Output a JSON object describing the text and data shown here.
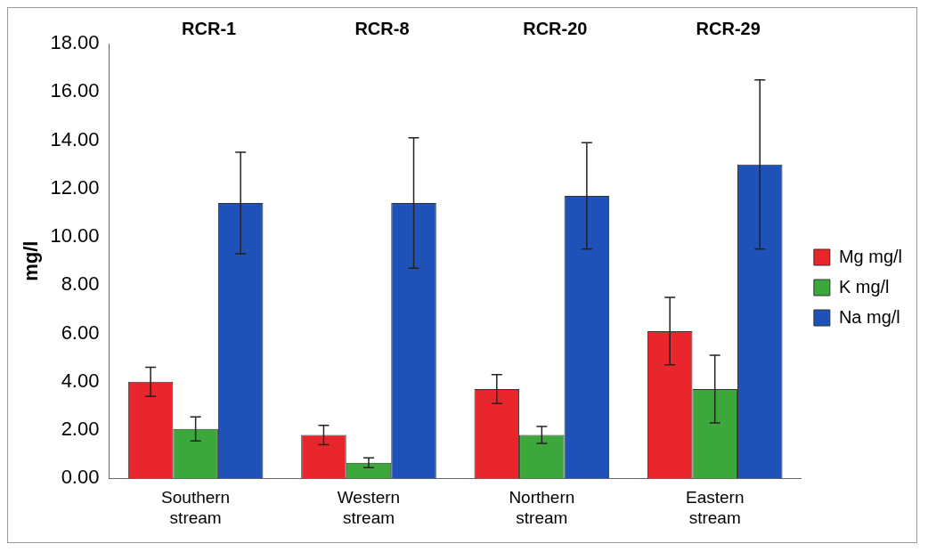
{
  "chart_data": {
    "type": "bar",
    "ylabel": "mg/l",
    "categories": [
      "Southern stream",
      "Western stream",
      "Northern stream",
      "Eastern stream"
    ],
    "series": [
      {
        "name": "Mg mg/l",
        "color": "#e8262c",
        "values": [
          4.0,
          1.8,
          3.7,
          6.1
        ],
        "errors": [
          0.6,
          0.4,
          0.6,
          1.4
        ]
      },
      {
        "name": "K mg/l",
        "color": "#3ca83c",
        "values": [
          2.05,
          0.65,
          1.8,
          3.7
        ],
        "errors": [
          0.5,
          0.2,
          0.35,
          1.4
        ]
      },
      {
        "name": "Na mg/l",
        "color": "#1f52b8",
        "values": [
          11.4,
          11.4,
          11.7,
          13.0
        ],
        "errors": [
          2.1,
          2.7,
          2.2,
          3.5
        ]
      }
    ],
    "ylim": [
      0,
      18
    ],
    "yticks": [
      {
        "value": 0,
        "label": "0.00"
      },
      {
        "value": 2,
        "label": "2.00"
      },
      {
        "value": 4,
        "label": "4.00"
      },
      {
        "value": 6,
        "label": "6.00"
      },
      {
        "value": 8,
        "label": "8.00"
      },
      {
        "value": 10,
        "label": "10.00"
      },
      {
        "value": 12,
        "label": "12.00"
      },
      {
        "value": 14,
        "label": "14.00"
      },
      {
        "value": 16,
        "label": "16.00"
      },
      {
        "value": 18,
        "label": "18.00"
      }
    ],
    "annotations": [
      "RCR-1",
      "RCR-8",
      "RCR-20",
      "RCR-29"
    ],
    "grid": false,
    "legend": "right"
  }
}
